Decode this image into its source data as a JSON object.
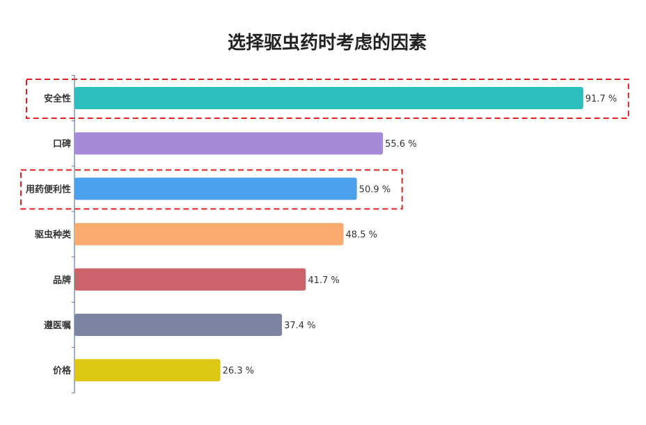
{
  "chart_data": {
    "type": "bar",
    "orientation": "horizontal",
    "title": "选择驱虫药时考虑的因素",
    "categories": [
      "安全性",
      "口碑",
      "用药便利性",
      "驱虫种类",
      "品牌",
      "遵医嘱",
      "价格"
    ],
    "values": [
      91.7,
      55.6,
      50.9,
      48.5,
      41.7,
      37.4,
      26.3
    ],
    "value_suffix": " %",
    "value_labels": [
      "91.7 %",
      "55.6 %",
      "50.9 %",
      "48.5 %",
      "41.7 %",
      "37.4 %",
      "26.3 %"
    ],
    "colors": [
      "#2bbfbf",
      "#a68ad8",
      "#4aa0ea",
      "#fbab6d",
      "#cc636b",
      "#7c84a2",
      "#dcc813"
    ],
    "xlim": [
      0,
      100
    ],
    "grid": false,
    "legend": "none",
    "highlighted_categories": [
      "安全性",
      "用药便利性"
    ],
    "highlight_color": "#e02020"
  }
}
